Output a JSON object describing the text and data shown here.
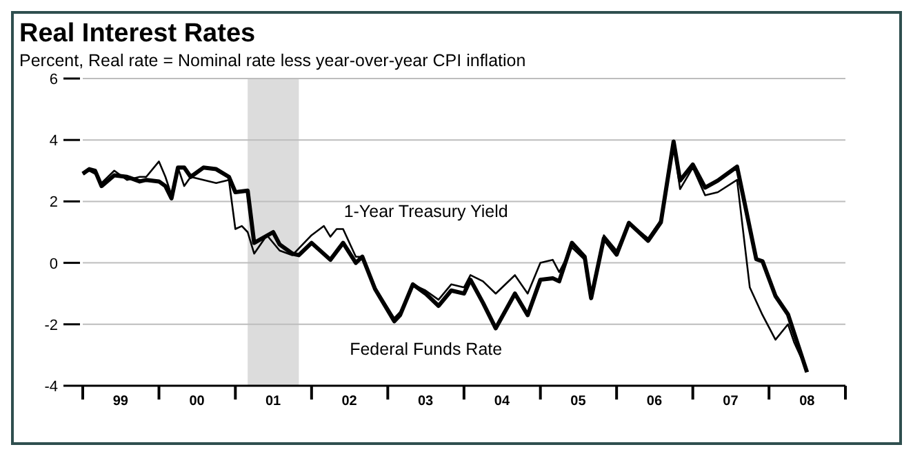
{
  "chart_data": {
    "type": "line",
    "title": "Real Interest Rates",
    "subtitle": "Percent, Real rate = Nominal rate less year-over-year CPI inflation",
    "xlim": [
      "1999-01",
      "2009-01"
    ],
    "xticks": [
      {
        "value": "1999-01",
        "label": null
      },
      {
        "value": "1999-07",
        "label": "99"
      },
      {
        "value": "2000-01",
        "label": null
      },
      {
        "value": "2000-07",
        "label": "00"
      },
      {
        "value": "2001-01",
        "label": null
      },
      {
        "value": "2001-07",
        "label": "01"
      },
      {
        "value": "2002-01",
        "label": null
      },
      {
        "value": "2002-07",
        "label": "02"
      },
      {
        "value": "2003-01",
        "label": null
      },
      {
        "value": "2003-07",
        "label": "03"
      },
      {
        "value": "2004-01",
        "label": null
      },
      {
        "value": "2004-07",
        "label": "04"
      },
      {
        "value": "2005-01",
        "label": null
      },
      {
        "value": "2005-07",
        "label": "05"
      },
      {
        "value": "2006-01",
        "label": null
      },
      {
        "value": "2006-07",
        "label": "06"
      },
      {
        "value": "2007-01",
        "label": null
      },
      {
        "value": "2007-07",
        "label": "07"
      },
      {
        "value": "2008-01",
        "label": null
      },
      {
        "value": "2008-07",
        "label": "08"
      },
      {
        "value": "2009-01",
        "label": null
      }
    ],
    "ylim": [
      -4,
      6
    ],
    "yticks": [
      -4,
      -2,
      0,
      2,
      4,
      6
    ],
    "grid": "y",
    "bands": [
      {
        "axis": "x",
        "from": "2001-03",
        "to": "2001-11",
        "color": "#dcdcdc"
      }
    ],
    "series": [
      {
        "name": "1-Year Treasury Yield",
        "color": "#000000",
        "x": [
          "1999-01",
          "1999-02",
          "1999-03",
          "1999-04",
          "1999-06",
          "1999-08",
          "1999-10",
          "1999-11",
          "2000-01",
          "2000-02",
          "2000-03",
          "2000-04",
          "2000-05",
          "2000-06",
          "2000-08",
          "2000-10",
          "2000-12",
          "2001-01",
          "2001-02",
          "2001-03",
          "2001-04",
          "2001-06",
          "2001-08",
          "2001-10",
          "2002-01",
          "2002-03",
          "2002-04",
          "2002-05",
          "2002-06",
          "2002-08",
          "2002-09",
          "2002-11",
          "2003-02",
          "2003-03",
          "2003-05",
          "2003-07",
          "2003-09",
          "2003-11",
          "2004-01",
          "2004-02",
          "2004-04",
          "2004-06",
          "2004-09",
          "2004-11",
          "2005-01",
          "2005-03",
          "2005-04",
          "2005-06",
          "2005-08",
          "2005-09",
          "2005-11",
          "2006-01",
          "2006-03",
          "2006-06",
          "2006-08",
          "2006-10",
          "2006-11",
          "2007-01",
          "2007-03",
          "2007-05",
          "2007-08",
          "2007-10",
          "2007-12",
          "2008-02",
          "2008-04",
          "2008-05",
          "2008-07"
        ],
        "values": [
          2.9,
          3.0,
          2.9,
          2.6,
          3.0,
          2.7,
          2.8,
          2.8,
          3.3,
          2.8,
          2.2,
          3.1,
          2.5,
          2.8,
          2.7,
          2.6,
          2.7,
          1.1,
          1.2,
          1.0,
          0.3,
          0.9,
          0.4,
          0.25,
          0.9,
          1.2,
          0.85,
          1.1,
          1.1,
          0.2,
          0.2,
          -0.8,
          -1.8,
          -1.6,
          -0.7,
          -0.9,
          -1.2,
          -0.7,
          -0.8,
          -0.4,
          -0.6,
          -1.0,
          -0.4,
          -1.0,
          0.0,
          0.1,
          -0.3,
          0.5,
          0.1,
          -1.1,
          0.9,
          0.4,
          1.3,
          0.8,
          1.4,
          3.9,
          2.4,
          3.1,
          2.2,
          2.3,
          2.7,
          -0.8,
          -1.7,
          -2.5,
          -2.0,
          -2.6,
          -3.5
        ]
      },
      {
        "name": "Federal Funds Rate",
        "color": "#000000",
        "x": [
          "1999-01",
          "1999-02",
          "1999-03",
          "1999-04",
          "1999-06",
          "1999-08",
          "1999-10",
          "1999-11",
          "2000-01",
          "2000-02",
          "2000-03",
          "2000-04",
          "2000-05",
          "2000-06",
          "2000-08",
          "2000-10",
          "2000-12",
          "2001-01",
          "2001-03",
          "2001-04",
          "2001-07",
          "2001-08",
          "2001-10",
          "2001-11",
          "2002-01",
          "2002-04",
          "2002-06",
          "2002-08",
          "2002-09",
          "2002-11",
          "2003-02",
          "2003-03",
          "2003-05",
          "2003-07",
          "2003-09",
          "2003-11",
          "2004-01",
          "2004-02",
          "2004-04",
          "2004-06",
          "2004-09",
          "2004-11",
          "2005-01",
          "2005-03",
          "2005-04",
          "2005-06",
          "2005-08",
          "2005-09",
          "2005-11",
          "2006-01",
          "2006-03",
          "2006-06",
          "2006-08",
          "2006-10",
          "2006-11",
          "2007-01",
          "2007-03",
          "2007-05",
          "2007-08",
          "2007-11",
          "2007-12",
          "2008-02",
          "2008-04",
          "2008-07"
        ],
        "values": [
          2.9,
          3.05,
          3.0,
          2.5,
          2.85,
          2.8,
          2.65,
          2.7,
          2.65,
          2.5,
          2.1,
          3.1,
          3.1,
          2.8,
          3.1,
          3.05,
          2.8,
          2.3,
          2.35,
          0.65,
          1.0,
          0.6,
          0.3,
          0.25,
          0.65,
          0.1,
          0.65,
          0.0,
          0.2,
          -0.85,
          -1.9,
          -1.7,
          -0.7,
          -1.0,
          -1.4,
          -0.9,
          -1.0,
          -0.55,
          -1.3,
          -2.13,
          -1.0,
          -1.7,
          -0.55,
          -0.5,
          -0.6,
          0.65,
          0.2,
          -1.15,
          0.8,
          0.27,
          1.3,
          0.72,
          1.32,
          3.95,
          2.68,
          3.2,
          2.45,
          2.68,
          3.13,
          0.12,
          0.05,
          -1.08,
          -1.68,
          -3.56
        ]
      }
    ]
  }
}
